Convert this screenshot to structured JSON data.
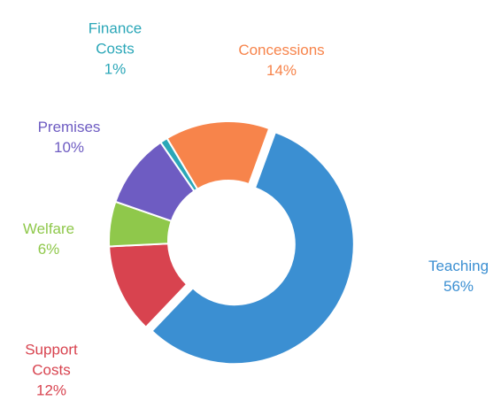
{
  "chart_data": {
    "type": "donut",
    "categories": [
      "Teaching",
      "Support Costs",
      "Welfare",
      "Premises",
      "Finance Costs",
      "Concessions"
    ],
    "values": [
      56,
      12,
      6,
      10,
      1,
      14
    ],
    "value_labels": [
      "56%",
      "12%",
      "6%",
      "10%",
      "1%",
      "14%"
    ],
    "colors": [
      "#3b8fd2",
      "#d8434f",
      "#8fc84b",
      "#6e5cc2",
      "#2ba7b8",
      "#f7844b"
    ],
    "exploded": [
      0
    ]
  }
}
